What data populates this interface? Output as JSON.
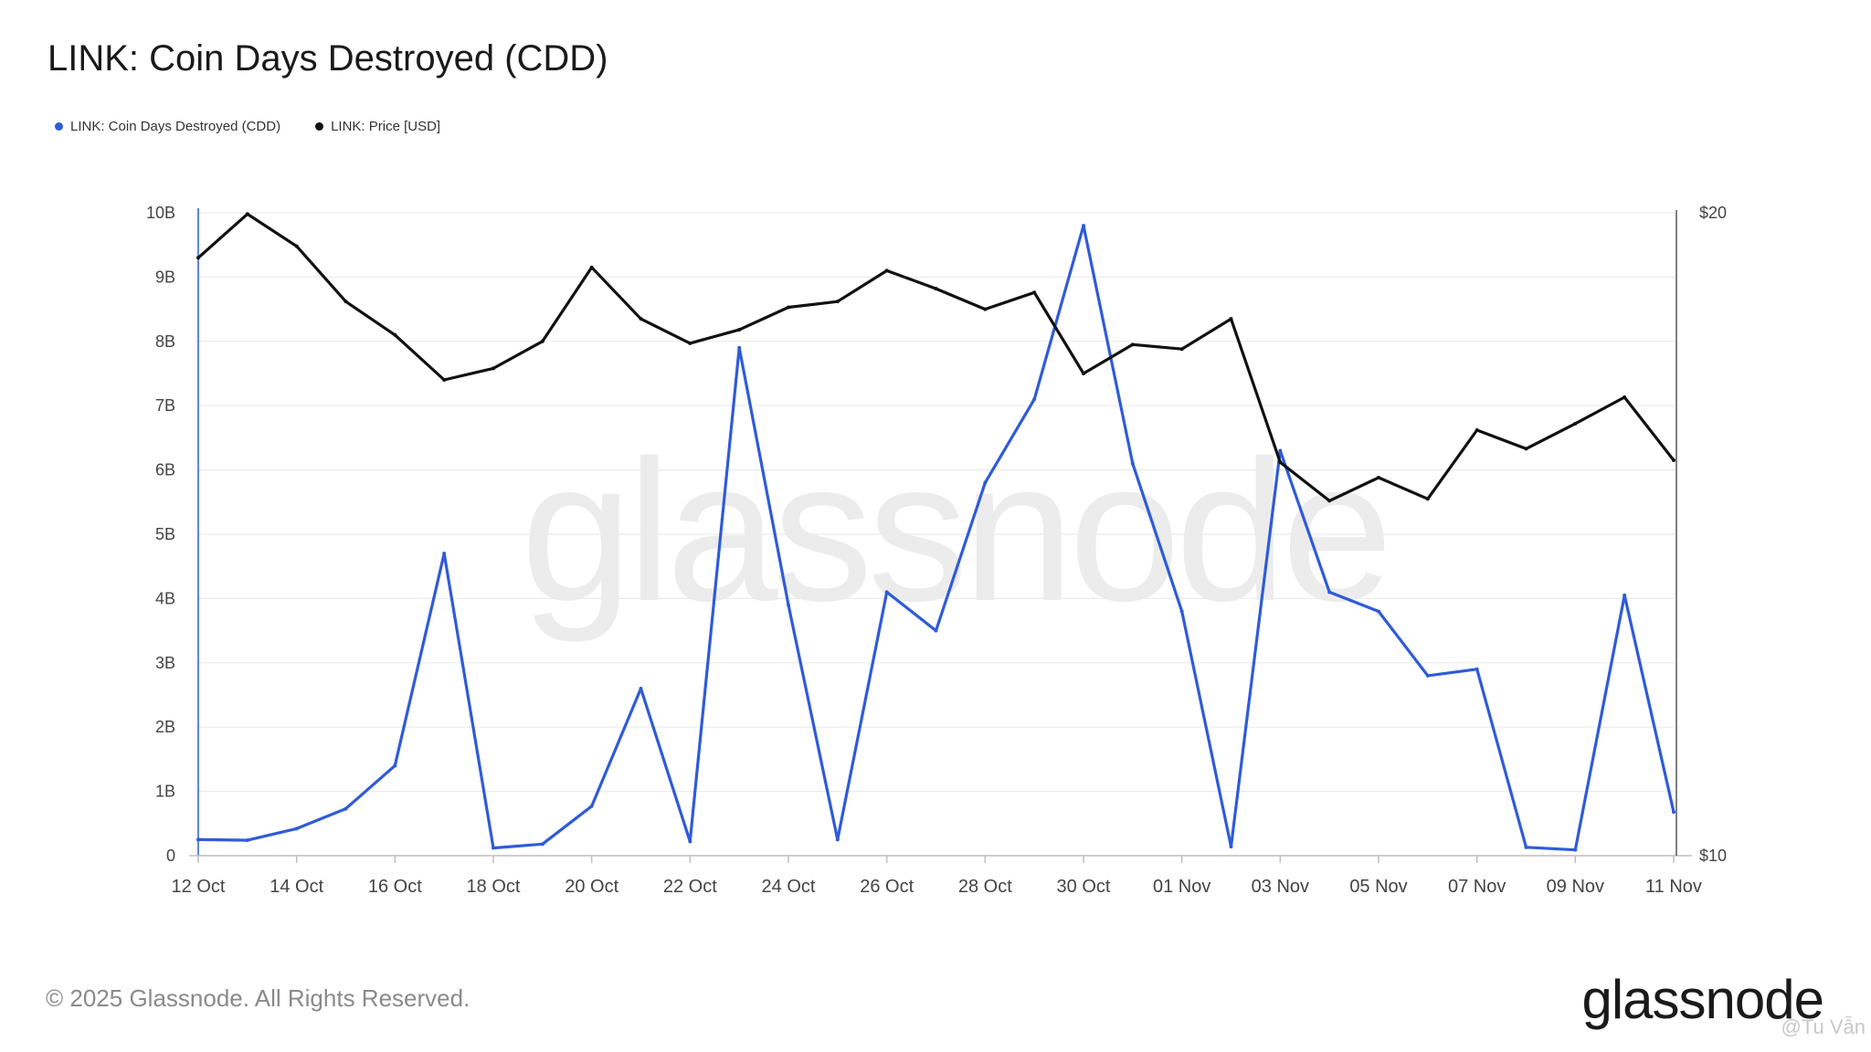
{
  "title": "LINK: Coin Days Destroyed (CDD)",
  "legend": [
    {
      "label": "LINK: Coin Days Destroyed (CDD)",
      "color": "#2f5bd9",
      "icon": "blue-dot-icon"
    },
    {
      "label": "LINK: Price [USD]",
      "color": "#111111",
      "icon": "black-dot-icon"
    }
  ],
  "footer": "© 2025 Glassnode. All Rights Reserved.",
  "brand": "glassnode",
  "watermark": "glassnode",
  "corner_mark": "@Tu  Vẫn",
  "colors": {
    "cdd": "#2f5bd9",
    "price": "#111111",
    "grid": "#ececec",
    "axis": "#555555",
    "tick": "#444444"
  },
  "chart_data": {
    "type": "line",
    "title": "LINK: Coin Days Destroyed (CDD)",
    "x": [
      "12 Oct",
      "13 Oct",
      "14 Oct",
      "15 Oct",
      "16 Oct",
      "17 Oct",
      "18 Oct",
      "19 Oct",
      "20 Oct",
      "21 Oct",
      "22 Oct",
      "23 Oct",
      "24 Oct",
      "25 Oct",
      "26 Oct",
      "27 Oct",
      "28 Oct",
      "29 Oct",
      "30 Oct",
      "31 Oct",
      "01 Nov",
      "02 Nov",
      "03 Nov",
      "04 Nov",
      "05 Nov",
      "06 Nov",
      "07 Nov",
      "08 Nov",
      "09 Nov",
      "10 Nov",
      "11 Nov"
    ],
    "x_tick_labels": [
      "12 Oct",
      "14 Oct",
      "16 Oct",
      "18 Oct",
      "20 Oct",
      "22 Oct",
      "24 Oct",
      "26 Oct",
      "28 Oct",
      "30 Oct",
      "01 Nov",
      "03 Nov",
      "05 Nov",
      "07 Nov",
      "09 Nov",
      "11 Nov"
    ],
    "left_axis": {
      "ylim": [
        0,
        10
      ],
      "tick_labels": [
        "0",
        "1B",
        "2B",
        "3B",
        "4B",
        "5B",
        "6B",
        "7B",
        "8B",
        "9B",
        "10B"
      ]
    },
    "right_axis": {
      "ylim": [
        10,
        20
      ],
      "tick_labels": [
        "$10",
        "$20"
      ]
    },
    "grid": true,
    "legend_position": "top-left",
    "series": [
      {
        "name": "LINK: Coin Days Destroyed (CDD)",
        "axis": "left",
        "unit": "billions",
        "values": [
          0.25,
          0.24,
          0.42,
          0.73,
          1.4,
          4.7,
          0.12,
          0.18,
          0.77,
          2.6,
          0.22,
          7.9,
          3.9,
          0.25,
          4.1,
          3.5,
          5.8,
          7.1,
          9.8,
          6.1,
          3.8,
          0.14,
          6.3,
          4.1,
          3.8,
          2.8,
          2.9,
          0.13,
          0.09,
          4.05,
          0.68
        ]
      },
      {
        "name": "LINK: Price [USD]",
        "axis": "right",
        "unit": "USD",
        "values": [
          19.3,
          19.98,
          19.48,
          18.62,
          18.1,
          17.4,
          17.58,
          18.0,
          19.15,
          18.35,
          17.97,
          18.18,
          18.53,
          18.62,
          19.1,
          18.82,
          18.5,
          18.76,
          17.5,
          17.95,
          17.88,
          18.35,
          16.12,
          15.52,
          15.88,
          15.55,
          16.62,
          16.33,
          16.72,
          17.13,
          16.15
        ]
      }
    ]
  }
}
